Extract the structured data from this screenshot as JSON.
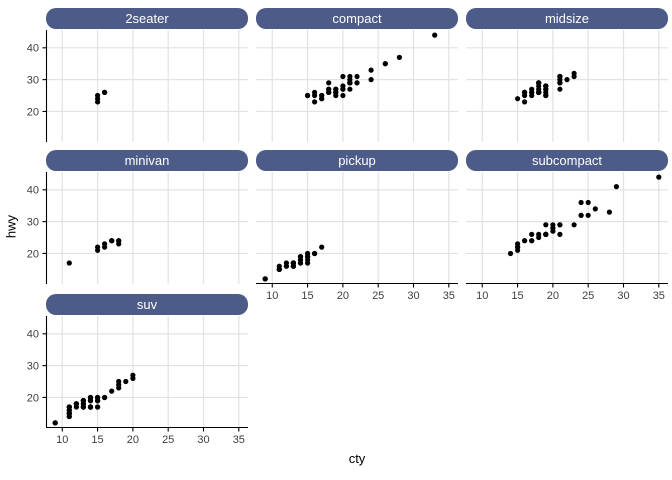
{
  "chart_data": {
    "type": "scatter",
    "title": "",
    "xlabel": "cty",
    "ylabel": "hwy",
    "facet_by": "class",
    "grid": true,
    "legend": "none",
    "x_ticks": [
      10,
      15,
      20,
      25,
      30,
      35
    ],
    "y_ticks": [
      20,
      30,
      40
    ],
    "x_domain": [
      7.7,
      36.3
    ],
    "y_domain": [
      10.4,
      45.6
    ],
    "facets": [
      {
        "label": "2seater",
        "points": [
          [
            16,
            26
          ],
          [
            15,
            23
          ],
          [
            16,
            26
          ],
          [
            15,
            25
          ],
          [
            15,
            24
          ]
        ]
      },
      {
        "label": "compact",
        "points": [
          [
            18,
            29
          ],
          [
            21,
            29
          ],
          [
            20,
            31
          ],
          [
            21,
            30
          ],
          [
            16,
            26
          ],
          [
            18,
            26
          ],
          [
            18,
            27
          ],
          [
            18,
            26
          ],
          [
            16,
            25
          ],
          [
            20,
            28
          ],
          [
            19,
            27
          ],
          [
            15,
            25
          ],
          [
            17,
            25
          ],
          [
            17,
            25
          ],
          [
            15,
            25
          ],
          [
            21,
            29
          ],
          [
            19,
            27
          ],
          [
            21,
            27
          ],
          [
            21,
            29
          ],
          [
            21,
            31
          ],
          [
            22,
            31
          ],
          [
            18,
            26
          ],
          [
            18,
            27
          ],
          [
            24,
            30
          ],
          [
            24,
            33
          ],
          [
            26,
            35
          ],
          [
            28,
            37
          ],
          [
            26,
            35
          ],
          [
            21,
            29
          ],
          [
            19,
            26
          ],
          [
            21,
            29
          ],
          [
            22,
            29
          ],
          [
            17,
            24
          ],
          [
            33,
            44
          ],
          [
            21,
            29
          ],
          [
            19,
            26
          ],
          [
            22,
            29
          ],
          [
            21,
            29
          ],
          [
            21,
            29
          ],
          [
            21,
            29
          ],
          [
            16,
            23
          ],
          [
            17,
            24
          ],
          [
            20,
            25
          ],
          [
            20,
            27
          ],
          [
            19,
            25
          ],
          [
            20,
            27
          ],
          [
            19,
            26
          ]
        ]
      },
      {
        "label": "midsize",
        "points": [
          [
            15,
            24
          ],
          [
            17,
            25
          ],
          [
            16,
            23
          ],
          [
            18,
            29
          ],
          [
            17,
            27
          ],
          [
            16,
            26
          ],
          [
            19,
            27
          ],
          [
            22,
            30
          ],
          [
            18,
            26
          ],
          [
            18,
            29
          ],
          [
            17,
            26
          ],
          [
            18,
            26
          ],
          [
            18,
            27
          ],
          [
            21,
            30
          ],
          [
            21,
            31
          ],
          [
            18,
            26
          ],
          [
            19,
            28
          ],
          [
            23,
            31
          ],
          [
            23,
            32
          ],
          [
            19,
            27
          ],
          [
            19,
            26
          ],
          [
            18,
            26
          ],
          [
            19,
            25
          ],
          [
            19,
            25
          ],
          [
            18,
            26
          ],
          [
            16,
            26
          ],
          [
            18,
            28
          ],
          [
            16,
            25
          ],
          [
            21,
            29
          ],
          [
            21,
            27
          ],
          [
            21,
            31
          ],
          [
            21,
            31
          ],
          [
            18,
            26
          ],
          [
            18,
            26
          ],
          [
            19,
            28
          ],
          [
            21,
            29
          ],
          [
            18,
            29
          ],
          [
            19,
            28
          ],
          [
            21,
            29
          ],
          [
            16,
            26
          ],
          [
            18,
            26
          ],
          [
            17,
            26
          ]
        ]
      },
      {
        "label": "minivan",
        "points": [
          [
            18,
            24
          ],
          [
            17,
            24
          ],
          [
            16,
            22
          ],
          [
            17,
            24
          ],
          [
            17,
            24
          ],
          [
            11,
            17
          ],
          [
            15,
            22
          ],
          [
            15,
            21
          ],
          [
            16,
            23
          ],
          [
            18,
            23
          ],
          [
            18,
            24
          ]
        ]
      },
      {
        "label": "pickup",
        "points": [
          [
            15,
            19
          ],
          [
            14,
            18
          ],
          [
            13,
            17
          ],
          [
            14,
            17
          ],
          [
            14,
            19
          ],
          [
            14,
            19
          ],
          [
            9,
            12
          ],
          [
            12,
            16
          ],
          [
            9,
            12
          ],
          [
            13,
            17
          ],
          [
            13,
            17
          ],
          [
            12,
            16
          ],
          [
            11,
            15
          ],
          [
            11,
            16
          ],
          [
            13,
            17
          ],
          [
            11,
            15
          ],
          [
            13,
            16
          ],
          [
            14,
            17
          ],
          [
            13,
            16
          ],
          [
            13,
            16
          ],
          [
            13,
            17
          ],
          [
            11,
            15
          ],
          [
            13,
            17
          ],
          [
            15,
            20
          ],
          [
            16,
            20
          ],
          [
            17,
            22
          ],
          [
            15,
            17
          ],
          [
            15,
            19
          ],
          [
            15,
            18
          ],
          [
            16,
            20
          ],
          [
            13,
            16
          ],
          [
            14,
            18
          ],
          [
            12,
            17
          ]
        ]
      },
      {
        "label": "subcompact",
        "points": [
          [
            18,
            26
          ],
          [
            18,
            25
          ],
          [
            17,
            26
          ],
          [
            16,
            24
          ],
          [
            15,
            21
          ],
          [
            15,
            22
          ],
          [
            15,
            23
          ],
          [
            15,
            22
          ],
          [
            14,
            20
          ],
          [
            28,
            33
          ],
          [
            24,
            32
          ],
          [
            25,
            32
          ],
          [
            23,
            29
          ],
          [
            24,
            32
          ],
          [
            26,
            34
          ],
          [
            25,
            36
          ],
          [
            24,
            36
          ],
          [
            21,
            29
          ],
          [
            19,
            26
          ],
          [
            19,
            29
          ],
          [
            20,
            28
          ],
          [
            20,
            27
          ],
          [
            17,
            24
          ],
          [
            16,
            24
          ],
          [
            17,
            24
          ],
          [
            21,
            26
          ],
          [
            19,
            26
          ],
          [
            19,
            26
          ],
          [
            35,
            44
          ],
          [
            29,
            41
          ],
          [
            21,
            29
          ],
          [
            19,
            26
          ],
          [
            20,
            28
          ],
          [
            20,
            29
          ],
          [
            19,
            26
          ]
        ]
      },
      {
        "label": "suv",
        "points": [
          [
            14,
            20
          ],
          [
            11,
            15
          ],
          [
            14,
            20
          ],
          [
            13,
            17
          ],
          [
            12,
            17
          ],
          [
            14,
            19
          ],
          [
            11,
            14
          ],
          [
            11,
            15
          ],
          [
            14,
            17
          ],
          [
            13,
            17
          ],
          [
            13,
            17
          ],
          [
            9,
            12
          ],
          [
            13,
            17
          ],
          [
            11,
            16
          ],
          [
            13,
            18
          ],
          [
            11,
            17
          ],
          [
            11,
            17
          ],
          [
            12,
            18
          ],
          [
            14,
            17
          ],
          [
            15,
            19
          ],
          [
            14,
            17
          ],
          [
            13,
            19
          ],
          [
            13,
            19
          ],
          [
            17,
            22
          ],
          [
            15,
            19
          ],
          [
            15,
            20
          ],
          [
            14,
            17
          ],
          [
            9,
            12
          ],
          [
            14,
            19
          ],
          [
            13,
            18
          ],
          [
            11,
            14
          ],
          [
            11,
            15
          ],
          [
            12,
            18
          ],
          [
            12,
            18
          ],
          [
            11,
            15
          ],
          [
            11,
            17
          ],
          [
            11,
            16
          ],
          [
            12,
            18
          ],
          [
            14,
            17
          ],
          [
            13,
            19
          ],
          [
            13,
            19
          ],
          [
            14,
            17
          ],
          [
            14,
            17
          ],
          [
            15,
            17
          ],
          [
            14,
            20
          ],
          [
            12,
            18
          ],
          [
            18,
            25
          ],
          [
            18,
            24
          ],
          [
            20,
            27
          ],
          [
            19,
            25
          ],
          [
            20,
            26
          ],
          [
            18,
            23
          ],
          [
            15,
            20
          ],
          [
            16,
            20
          ],
          [
            15,
            19
          ],
          [
            15,
            17
          ],
          [
            16,
            20
          ],
          [
            14,
            17
          ],
          [
            11,
            15
          ],
          [
            13,
            18
          ],
          [
            14,
            19
          ],
          [
            13,
            17
          ]
        ]
      }
    ],
    "colors": {
      "strip_fill": "#4C5B87",
      "strip_text": "#FFFFFF",
      "grid_line": "#E2E2E2",
      "panel_background": "#FFFFFF",
      "axis_line": "#000000",
      "tick_label": "#404040",
      "point": "#000000"
    }
  }
}
